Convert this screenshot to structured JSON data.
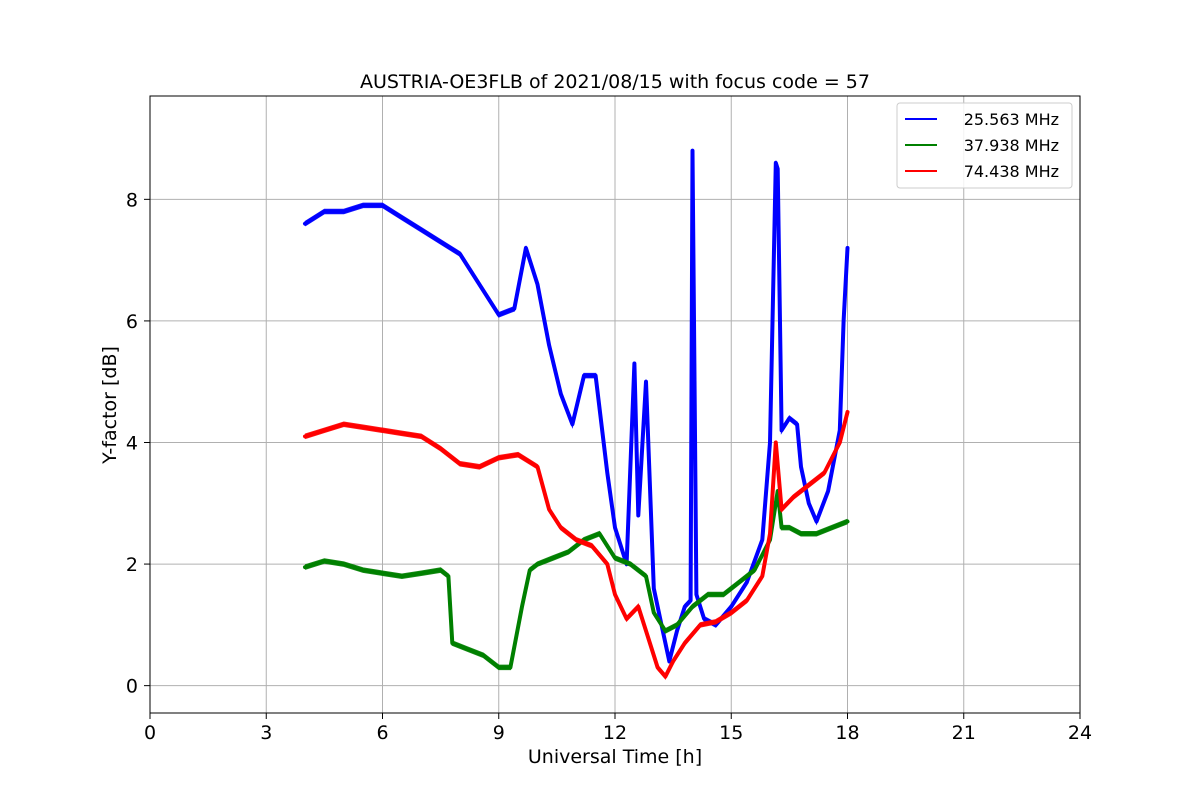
{
  "chart_data": {
    "type": "line",
    "title": "AUSTRIA-OE3FLB of 2021/08/15 with focus code = 57",
    "xlabel": "Universal Time [h]",
    "ylabel": "Y-factor [dB]",
    "xlim": [
      0,
      24
    ],
    "ylim": [
      -0.45,
      9.7
    ],
    "xticks": [
      0,
      3,
      6,
      9,
      12,
      15,
      18,
      21,
      24
    ],
    "yticks": [
      0,
      2,
      4,
      6,
      8
    ],
    "grid": true,
    "legend_position": "top-right",
    "series": [
      {
        "name": "25.563 MHz",
        "color": "#0000ff",
        "x": [
          4.0,
          4.5,
          5.0,
          5.5,
          6.0,
          6.5,
          7.0,
          7.5,
          8.0,
          8.5,
          9.0,
          9.4,
          9.7,
          10.0,
          10.3,
          10.6,
          10.9,
          11.2,
          11.5,
          11.8,
          12.0,
          12.3,
          12.5,
          12.6,
          12.8,
          13.0,
          13.2,
          13.4,
          13.6,
          13.8,
          13.95,
          14.0,
          14.1,
          14.3,
          14.6,
          15.0,
          15.4,
          15.8,
          16.0,
          16.15,
          16.2,
          16.3,
          16.5,
          16.7,
          16.8,
          17.0,
          17.2,
          17.5,
          17.8,
          17.9,
          18.0
        ],
        "y": [
          7.6,
          7.8,
          7.8,
          7.9,
          7.9,
          7.7,
          7.5,
          7.3,
          7.1,
          6.6,
          6.1,
          6.2,
          7.2,
          6.6,
          5.6,
          4.8,
          4.3,
          5.1,
          5.1,
          3.5,
          2.6,
          2.0,
          5.3,
          2.8,
          5.0,
          1.6,
          1.0,
          0.4,
          0.9,
          1.3,
          1.4,
          8.8,
          1.5,
          1.1,
          1.0,
          1.3,
          1.7,
          2.4,
          4.0,
          8.6,
          8.5,
          4.2,
          4.4,
          4.3,
          3.6,
          3.0,
          2.7,
          3.2,
          4.2,
          6.0,
          7.2
        ]
      },
      {
        "name": "37.938 MHz",
        "color": "#008000",
        "x": [
          4.0,
          4.5,
          5.0,
          5.5,
          6.0,
          6.5,
          7.0,
          7.5,
          7.7,
          7.8,
          8.2,
          8.6,
          9.0,
          9.3,
          9.6,
          9.8,
          10.0,
          10.4,
          10.8,
          11.2,
          11.6,
          12.0,
          12.4,
          12.8,
          13.0,
          13.3,
          13.6,
          14.0,
          14.4,
          14.8,
          15.2,
          15.6,
          16.0,
          16.2,
          16.3,
          16.5,
          16.8,
          17.2,
          17.6,
          18.0
        ],
        "y": [
          1.95,
          2.05,
          2.0,
          1.9,
          1.85,
          1.8,
          1.85,
          1.9,
          1.8,
          0.7,
          0.6,
          0.5,
          0.3,
          0.3,
          1.3,
          1.9,
          2.0,
          2.1,
          2.2,
          2.4,
          2.5,
          2.1,
          2.0,
          1.8,
          1.2,
          0.9,
          1.0,
          1.3,
          1.5,
          1.5,
          1.7,
          1.9,
          2.4,
          3.2,
          2.6,
          2.6,
          2.5,
          2.5,
          2.6,
          2.7
        ]
      },
      {
        "name": "74.438 MHz",
        "color": "#ff0000",
        "x": [
          4.0,
          4.5,
          5.0,
          5.5,
          6.0,
          6.5,
          7.0,
          7.5,
          8.0,
          8.5,
          9.0,
          9.5,
          10.0,
          10.3,
          10.6,
          11.0,
          11.4,
          11.8,
          12.0,
          12.3,
          12.6,
          12.9,
          13.1,
          13.3,
          13.5,
          13.8,
          14.2,
          14.6,
          15.0,
          15.4,
          15.8,
          16.0,
          16.15,
          16.3,
          16.6,
          17.0,
          17.4,
          17.8,
          18.0
        ],
        "y": [
          4.1,
          4.2,
          4.3,
          4.25,
          4.2,
          4.15,
          4.1,
          3.9,
          3.65,
          3.6,
          3.75,
          3.8,
          3.6,
          2.9,
          2.6,
          2.4,
          2.3,
          2.0,
          1.5,
          1.1,
          1.3,
          0.7,
          0.3,
          0.15,
          0.4,
          0.7,
          1.0,
          1.05,
          1.2,
          1.4,
          1.8,
          2.5,
          4.0,
          2.9,
          3.1,
          3.3,
          3.5,
          4.0,
          4.5
        ]
      }
    ]
  }
}
